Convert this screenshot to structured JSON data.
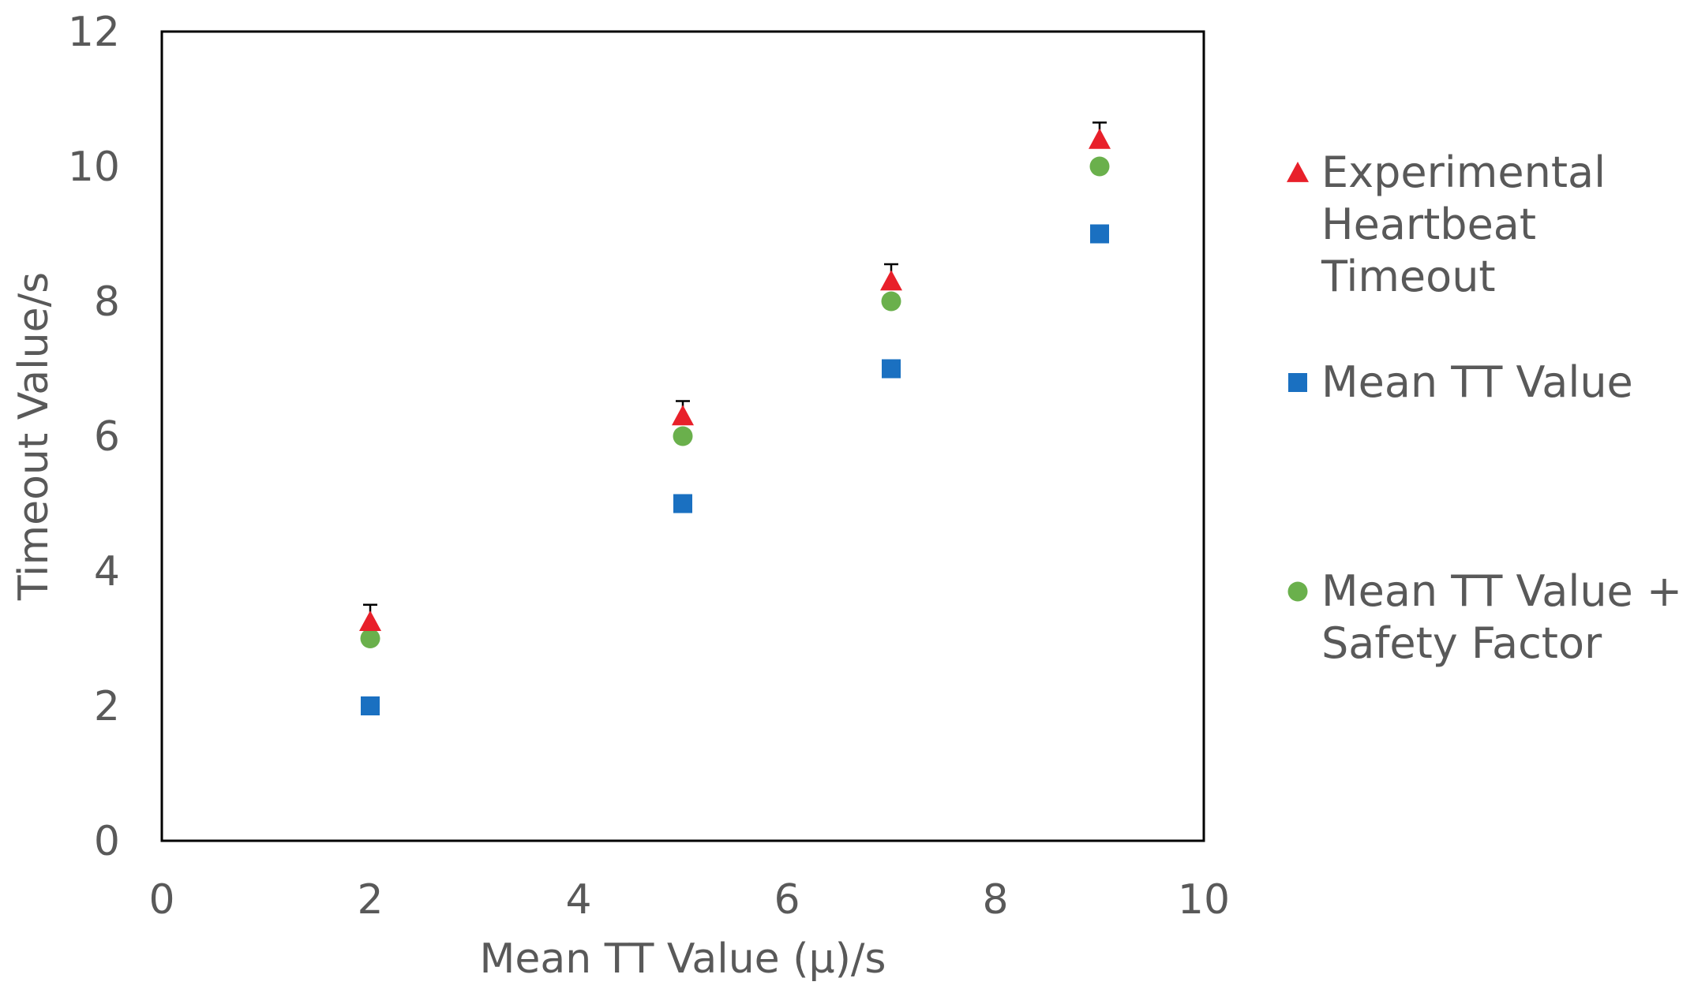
{
  "chart_data": {
    "type": "scatter",
    "title": "",
    "xlabel": "Mean TT Value (μ)/s",
    "ylabel": "Timeout Value/s",
    "xlim": [
      0,
      10
    ],
    "ylim": [
      0,
      12
    ],
    "xticks": [
      0,
      2,
      4,
      6,
      8,
      10
    ],
    "yticks": [
      0,
      2,
      4,
      6,
      8,
      10,
      12
    ],
    "x_tick_labels": [
      "0",
      "2",
      "4",
      "6",
      "8",
      "10"
    ],
    "y_tick_labels": [
      "0",
      "2",
      "4",
      "6",
      "8",
      "10",
      "12"
    ],
    "grid": false,
    "legend_position": "right",
    "series": [
      {
        "name": "Experimental Heartbeat Timeout",
        "legend_lines": [
          "Experimental",
          "Heartbeat",
          "Timeout"
        ],
        "marker": "triangle",
        "color": "#e8202a",
        "x": [
          2,
          5,
          7,
          9
        ],
        "y": [
          3.25,
          6.3,
          8.3,
          10.4
        ],
        "error_upper": [
          0.25,
          0.22,
          0.25,
          0.25
        ]
      },
      {
        "name": "Mean TT Value",
        "legend_lines": [
          "Mean TT Value"
        ],
        "marker": "square",
        "color": "#1a70c1",
        "x": [
          2,
          5,
          7,
          9
        ],
        "y": [
          2,
          5,
          7,
          9
        ]
      },
      {
        "name": "Mean TT Value + Safety Factor",
        "legend_lines": [
          "Mean TT Value +",
          "Safety Factor"
        ],
        "marker": "circle",
        "color": "#6ab04c",
        "x": [
          2,
          5,
          7,
          9
        ],
        "y": [
          3,
          6,
          8,
          10
        ]
      }
    ]
  }
}
